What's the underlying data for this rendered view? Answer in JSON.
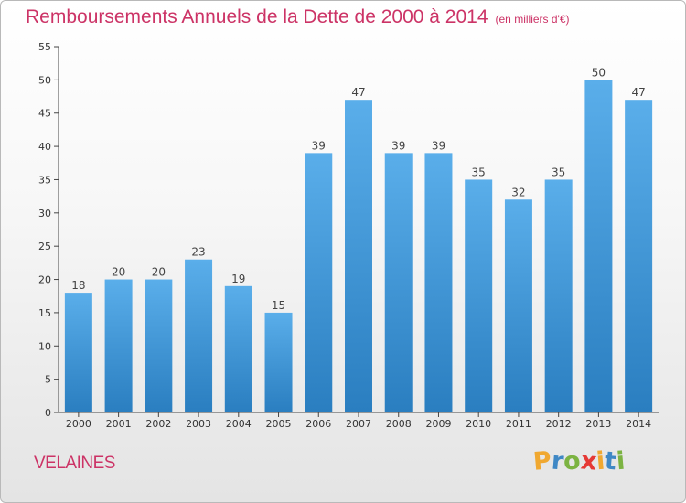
{
  "chart_data": {
    "type": "bar",
    "title": "Remboursements Annuels de la Dette de 2000 à 2014",
    "subtitle": "(en milliers d'€)",
    "categories": [
      "2000",
      "2001",
      "2002",
      "2003",
      "2004",
      "2005",
      "2006",
      "2007",
      "2008",
      "2009",
      "2010",
      "2011",
      "2012",
      "2013",
      "2014"
    ],
    "values": [
      18,
      20,
      20,
      23,
      19,
      15,
      39,
      47,
      39,
      39,
      35,
      32,
      35,
      50,
      47
    ],
    "ylim": [
      0,
      55
    ],
    "yticks": [
      0,
      5,
      10,
      15,
      20,
      25,
      30,
      35,
      40,
      45,
      50,
      55
    ],
    "xlabel": "",
    "ylabel": "",
    "grid": false,
    "bar_color_top": "#5aaeea",
    "bar_color_bottom": "#2a7ec0"
  },
  "footer": {
    "commune": "VELAINES",
    "brand_letters": [
      {
        "char": "P",
        "color": "#f0a830"
      },
      {
        "char": "r",
        "color": "#3f88c5"
      },
      {
        "char": "o",
        "color": "#7cb342"
      },
      {
        "char": "x",
        "color": "#e53935"
      },
      {
        "char": "i",
        "color": "#f0a830"
      },
      {
        "char": "t",
        "color": "#3f88c5"
      },
      {
        "char": "i",
        "color": "#7cb342"
      }
    ]
  }
}
